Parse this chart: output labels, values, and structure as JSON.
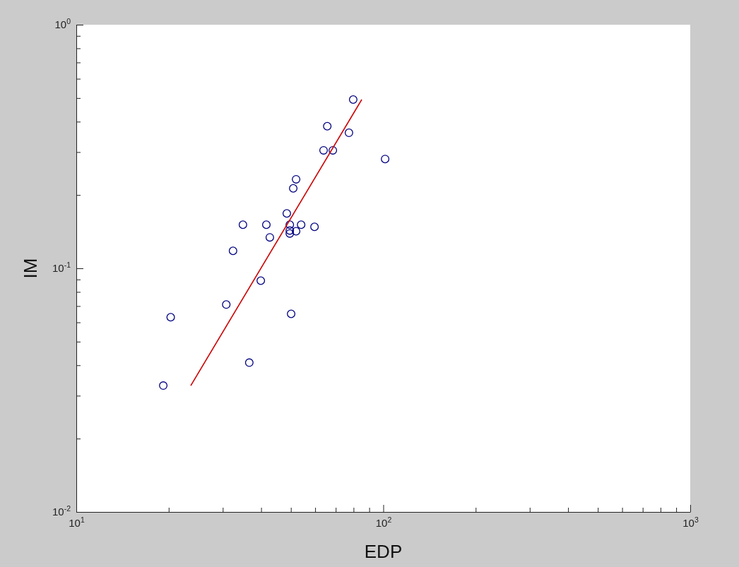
{
  "chart_data": {
    "type": "scatter",
    "xlabel": "EDP",
    "ylabel": "IM",
    "log": "xy",
    "grid": false,
    "xlim": [
      10,
      1000
    ],
    "ylim": [
      0.01,
      1
    ],
    "xticks": [
      {
        "value": 10,
        "label": "10$^{1}$"
      },
      {
        "value": 20,
        "label": null
      },
      {
        "value": 30,
        "label": null
      },
      {
        "value": 40,
        "label": null
      },
      {
        "value": 50,
        "label": null
      },
      {
        "value": 60,
        "label": null
      },
      {
        "value": 70,
        "label": null
      },
      {
        "value": 80,
        "label": null
      },
      {
        "value": 90,
        "label": null
      },
      {
        "value": 100,
        "label": "10$^{2}$"
      },
      {
        "value": 200,
        "label": null
      },
      {
        "value": 300,
        "label": null
      },
      {
        "value": 400,
        "label": null
      },
      {
        "value": 500,
        "label": null
      },
      {
        "value": 600,
        "label": null
      },
      {
        "value": 700,
        "label": null
      },
      {
        "value": 800,
        "label": null
      },
      {
        "value": 900,
        "label": null
      },
      {
        "value": 1000,
        "label": "10$^{3}$"
      }
    ],
    "yticks": [
      {
        "value": 0.01,
        "label": "10$^{-2}$"
      },
      {
        "value": 0.02,
        "label": null
      },
      {
        "value": 0.03,
        "label": null
      },
      {
        "value": 0.04,
        "label": null
      },
      {
        "value": 0.05,
        "label": null
      },
      {
        "value": 0.06,
        "label": null
      },
      {
        "value": 0.07,
        "label": null
      },
      {
        "value": 0.08,
        "label": null
      },
      {
        "value": 0.09,
        "label": null
      },
      {
        "value": 0.1,
        "label": "10$^{-1}$"
      },
      {
        "value": 0.2,
        "label": null
      },
      {
        "value": 0.3,
        "label": null
      },
      {
        "value": 0.4,
        "label": null
      },
      {
        "value": 0.5,
        "label": null
      },
      {
        "value": 0.6,
        "label": null
      },
      {
        "value": 0.7,
        "label": null
      },
      {
        "value": 0.8,
        "label": null
      },
      {
        "value": 0.9,
        "label": null
      },
      {
        "value": 1,
        "label": "10$^{0}$"
      }
    ],
    "series": [
      {
        "color": "#000080",
        "marker": "circle",
        "x": [
          19.2,
          20.3,
          30.8,
          32.4,
          34.9,
          36.6,
          39.9,
          41.6,
          42.7,
          48.5,
          49.6,
          49.6,
          49.6,
          50.1,
          50.9,
          52.0,
          52.0,
          54.0,
          59.7,
          63.9,
          65.7,
          68.5,
          77.3,
          79.8,
          101.4
        ],
        "values": [
          0.033,
          0.063,
          0.071,
          0.118,
          0.151,
          0.041,
          0.089,
          0.151,
          0.134,
          0.168,
          0.151,
          0.143,
          0.139,
          0.065,
          0.213,
          0.232,
          0.142,
          0.151,
          0.148,
          0.305,
          0.383,
          0.305,
          0.36,
          0.493,
          0.281
        ]
      },
      {
        "type": "line",
        "color": "#cc0000",
        "marker": "none",
        "x": [
          23.6,
          85.1
        ],
        "values": [
          0.033,
          0.493
        ]
      }
    ]
  }
}
